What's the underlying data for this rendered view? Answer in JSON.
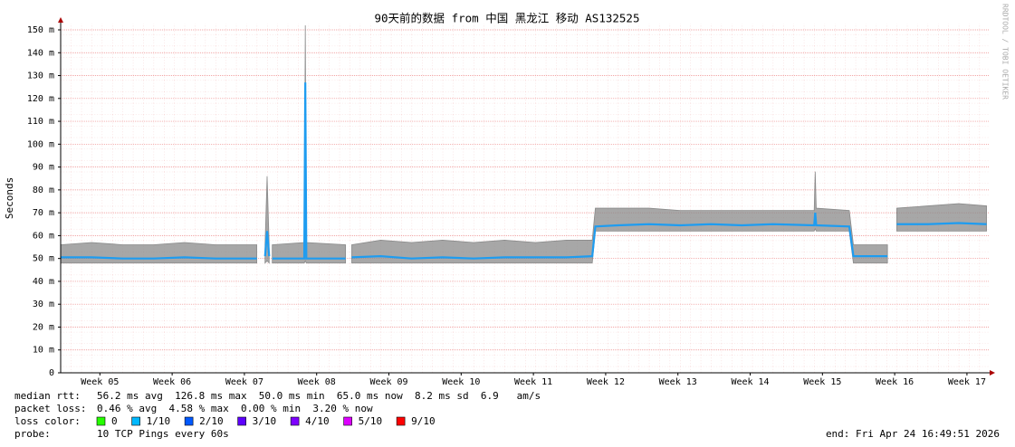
{
  "chart_data": {
    "type": "smokeping",
    "title": "90天前的数据 from 中国 黑龙江 移动 AS132525",
    "y_label": "Seconds",
    "watermark": "RRDTOOL / TOBI OETIKER",
    "xlim": [
      0,
      90
    ],
    "xticks": [
      {
        "value": 3.8,
        "label": "Week 05"
      },
      {
        "value": 10.8,
        "label": "Week 06"
      },
      {
        "value": 17.8,
        "label": "Week 07"
      },
      {
        "value": 24.8,
        "label": "Week 08"
      },
      {
        "value": 31.8,
        "label": "Week 09"
      },
      {
        "value": 38.8,
        "label": "Week 10"
      },
      {
        "value": 45.8,
        "label": "Week 11"
      },
      {
        "value": 52.8,
        "label": "Week 12"
      },
      {
        "value": 59.8,
        "label": "Week 13"
      },
      {
        "value": 66.8,
        "label": "Week 14"
      },
      {
        "value": 73.8,
        "label": "Week 15"
      },
      {
        "value": 80.8,
        "label": "Week 16"
      },
      {
        "value": 87.8,
        "label": "Week 17"
      }
    ],
    "ylim": [
      0,
      0.15
    ],
    "yticks": [
      0,
      {
        "value": 0.01,
        "label": "10 m"
      },
      {
        "value": 0.02,
        "label": "20 m"
      },
      {
        "value": 0.03,
        "label": "30 m"
      },
      {
        "value": 0.04,
        "label": "40 m"
      },
      {
        "value": 0.05,
        "label": "50 m"
      },
      {
        "value": 0.06,
        "label": "60 m"
      },
      {
        "value": 0.07,
        "label": "70 m"
      },
      {
        "value": 0.08,
        "label": "80 m"
      },
      {
        "value": 0.09,
        "label": "90 m"
      },
      {
        "value": 0.1,
        "label": "100 m"
      },
      {
        "value": 0.11,
        "label": "110 m"
      },
      {
        "value": 0.12,
        "label": "120 m"
      },
      {
        "value": 0.13,
        "label": "130 m"
      },
      {
        "value": 0.14,
        "label": "140 m"
      },
      {
        "value": 0.15,
        "label": "150 m"
      }
    ],
    "grid": true,
    "x": [
      0,
      3,
      6,
      9,
      12,
      15,
      19,
      19.5,
      19.8,
      20.0,
      20.2,
      20.3,
      20.5,
      23.6,
      23.7,
      23.8,
      27.6,
      27.9,
      28.2,
      31,
      34,
      37,
      40,
      43,
      46,
      49,
      51.5,
      51.8,
      54,
      57,
      60,
      63,
      66,
      69,
      73,
      73.1,
      73.2,
      76.4,
      76.8,
      80.1,
      80.5,
      81,
      84,
      87,
      89.7
    ],
    "median_color": "#1e9cf0",
    "smoke_color": "#8a8a8a",
    "median": [
      0.0505,
      0.0505,
      0.05,
      0.05,
      0.0505,
      0.05,
      0.05,
      null,
      0.051,
      0.062,
      0.051,
      null,
      0.05,
      0.05,
      0.127,
      0.05,
      0.05,
      null,
      0.0505,
      0.051,
      0.05,
      0.0505,
      0.05,
      0.0505,
      0.0505,
      0.0505,
      0.051,
      0.064,
      0.0645,
      0.065,
      0.0645,
      0.065,
      0.0645,
      0.065,
      0.0645,
      0.07,
      0.0645,
      0.064,
      0.051,
      0.051,
      null,
      0.065,
      0.065,
      0.0655,
      0.065
    ],
    "smoke_low": [
      0.048,
      0.048,
      0.048,
      0.048,
      0.048,
      0.048,
      0.048,
      null,
      0.048,
      0.049,
      0.048,
      null,
      0.048,
      0.048,
      0.049,
      0.048,
      0.048,
      null,
      0.048,
      0.048,
      0.048,
      0.048,
      0.048,
      0.048,
      0.048,
      0.048,
      0.048,
      0.062,
      0.062,
      0.062,
      0.062,
      0.062,
      0.062,
      0.062,
      0.062,
      0.063,
      0.062,
      0.062,
      0.048,
      0.048,
      null,
      0.062,
      0.062,
      0.062,
      0.062
    ],
    "smoke_high": [
      0.056,
      0.057,
      0.056,
      0.056,
      0.057,
      0.056,
      0.056,
      null,
      0.056,
      0.086,
      0.056,
      null,
      0.056,
      0.057,
      0.152,
      0.057,
      0.056,
      null,
      0.056,
      0.058,
      0.057,
      0.058,
      0.057,
      0.058,
      0.057,
      0.058,
      0.058,
      0.072,
      0.072,
      0.072,
      0.071,
      0.071,
      0.071,
      0.071,
      0.071,
      0.088,
      0.072,
      0.071,
      0.056,
      0.056,
      null,
      0.072,
      0.073,
      0.074,
      0.073
    ]
  },
  "footer": {
    "median_rtt": {
      "label": "median rtt:",
      "text": "56.2 ms avg  126.8 ms max  50.0 ms min  65.0 ms now  8.2 ms sd  6.9   am/s"
    },
    "packet_loss": {
      "label": "packet loss:",
      "text": "0.46 % avg  4.58 % max  0.00 % min  3.20 % now"
    },
    "loss_color": {
      "label": "loss color:",
      "items": [
        {
          "label": "0",
          "color": "#26ff00"
        },
        {
          "label": "1/10",
          "color": "#00b8ff"
        },
        {
          "label": "2/10",
          "color": "#0059ff"
        },
        {
          "label": "3/10",
          "color": "#5e00ff"
        },
        {
          "label": "4/10",
          "color": "#7e00ff"
        },
        {
          "label": "5/10",
          "color": "#dd00ff"
        },
        {
          "label": "9/10",
          "color": "#ff0000"
        }
      ]
    },
    "probe": {
      "label": "probe:",
      "text": "10 TCP Pings every 60s"
    },
    "end": "end: Fri Apr 24 16:49:51 2026"
  }
}
